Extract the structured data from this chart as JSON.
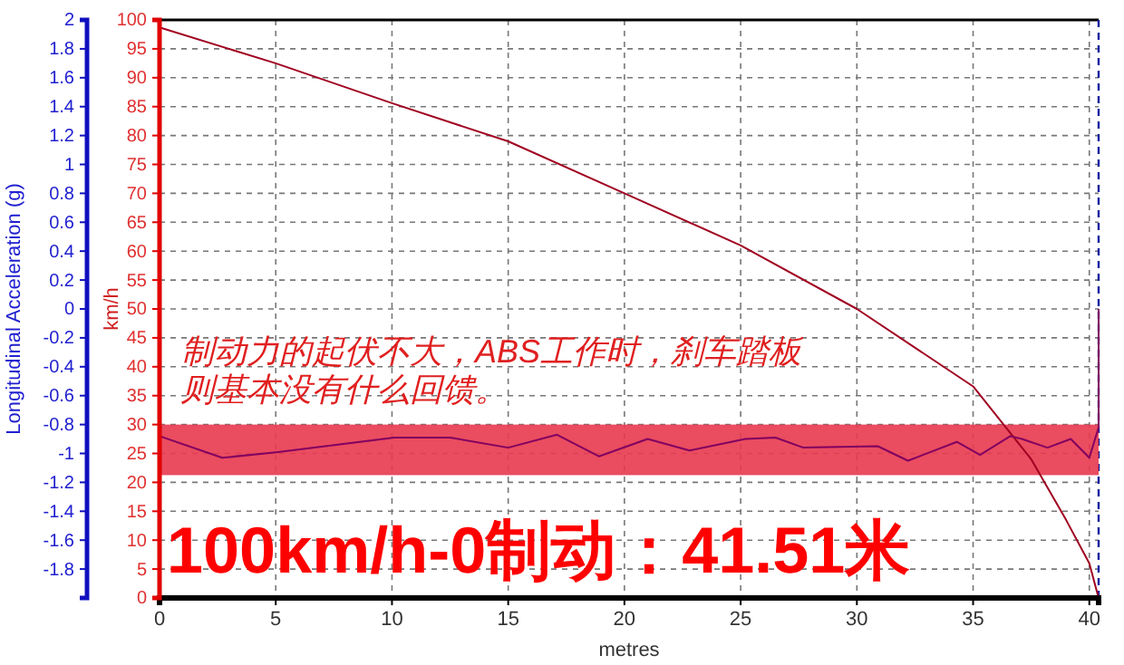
{
  "chart_data": {
    "type": "line",
    "xlabel": "metres",
    "ylabel": "Longitudinal Acceleration (g)",
    "y2label": "km/h",
    "xlim": [
      0,
      40.4
    ],
    "xticks": [
      0,
      5,
      10,
      15,
      20,
      25,
      30,
      35,
      40
    ],
    "ylim": [
      -2,
      2
    ],
    "yticks": [
      2,
      1.8,
      1.6,
      1.4,
      1.2,
      1,
      0.8,
      0.6,
      0.4,
      0.2,
      0,
      -0.2,
      -0.4,
      -0.6,
      -0.8,
      -1,
      -1.2,
      -1.4,
      -1.6,
      -1.8
    ],
    "y2lim": [
      0,
      100
    ],
    "y2ticks": [
      0,
      5,
      10,
      15,
      20,
      25,
      30,
      35,
      40,
      45,
      50,
      55,
      60,
      65,
      70,
      75,
      80,
      85,
      90,
      95,
      100
    ],
    "grid": true,
    "line_style": "solid",
    "bands": [
      {
        "axis": "y",
        "from": -1.15,
        "to": -0.8,
        "color": "#e8384f"
      }
    ],
    "series": [
      {
        "color": "#a00020",
        "axis": "y2",
        "x": [
          0,
          5,
          10,
          15,
          20,
          25,
          30,
          35,
          37.5,
          39,
          40,
          40.3,
          40.4
        ],
        "values": [
          98.7,
          92.5,
          85.6,
          79,
          70,
          61,
          50,
          36.6,
          24,
          13.5,
          6,
          1.5,
          0
        ]
      },
      {
        "color": "#800060",
        "axis": "y",
        "x": [
          0,
          2.7,
          5.1,
          10.1,
          12.5,
          15,
          17.1,
          18.9,
          21,
          22.8,
          25.2,
          26.5,
          27.7,
          30.9,
          32.2,
          34.3,
          35.3,
          36.6,
          37.1,
          38.2,
          39.2,
          40,
          40.4,
          40.4
        ],
        "values": [
          -0.88,
          -1.03,
          -0.99,
          -0.89,
          -0.89,
          -0.96,
          -0.87,
          -1.02,
          -0.9,
          -0.98,
          -0.9,
          -0.89,
          -0.96,
          -0.95,
          -1.05,
          -0.92,
          -1.01,
          -0.88,
          -0.9,
          -0.96,
          -0.9,
          -1.03,
          -0.82,
          0
        ]
      }
    ],
    "annotations": [
      "制动力的起伏不大，ABS工作时，刹车踏板",
      "则基本没有什么回馈。",
      "100km/h-0制动：41.51米"
    ]
  }
}
